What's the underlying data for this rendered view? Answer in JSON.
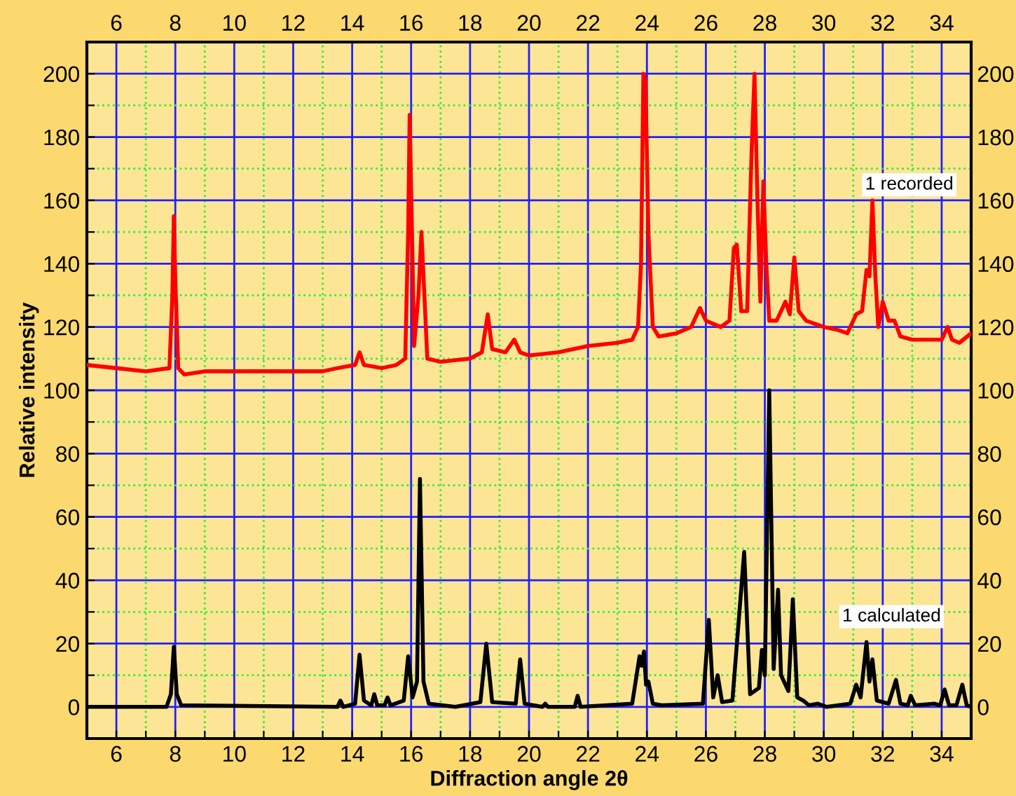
{
  "chart_data": {
    "type": "line",
    "xlabel": "Diffraction angle 2θ",
    "ylabel": "Relative intensity",
    "xlim": [
      5,
      35
    ],
    "xticks": [
      6,
      {
        "value": 7,
        "label": null
      },
      8,
      {
        "value": 9,
        "label": null
      },
      10,
      {
        "value": 11,
        "label": null
      },
      12,
      {
        "value": 13,
        "label": null
      },
      14,
      {
        "value": 15,
        "label": null
      },
      16,
      {
        "value": 17,
        "label": null
      },
      18,
      {
        "value": 19,
        "label": null
      },
      20,
      {
        "value": 21,
        "label": null
      },
      22,
      {
        "value": 23,
        "label": null
      },
      24,
      {
        "value": 25,
        "label": null
      },
      26,
      {
        "value": 27,
        "label": null
      },
      28,
      {
        "value": 29,
        "label": null
      },
      30,
      {
        "value": 31,
        "label": null
      },
      32,
      {
        "value": 33,
        "label": null
      },
      34
    ],
    "x2lim": [
      5,
      35
    ],
    "x2ticks": [
      6,
      8,
      10,
      12,
      14,
      16,
      18,
      20,
      22,
      24,
      26,
      28,
      30,
      32,
      34
    ],
    "ylim": [
      -10,
      210
    ],
    "yticks": [
      0,
      {
        "value": 10,
        "label": null
      },
      20,
      {
        "value": 30,
        "label": null
      },
      40,
      {
        "value": 50,
        "label": null
      },
      60,
      {
        "value": 70,
        "label": null
      },
      80,
      {
        "value": 90,
        "label": null
      },
      100,
      {
        "value": 110,
        "label": null
      },
      120,
      {
        "value": 130,
        "label": null
      },
      140,
      {
        "value": 150,
        "label": null
      },
      160,
      {
        "value": 170,
        "label": null
      },
      180,
      {
        "value": 190,
        "label": null
      },
      200
    ],
    "y2lim": [
      -10,
      210
    ],
    "y2ticks": [
      0,
      20,
      40,
      60,
      80,
      100,
      120,
      140,
      160,
      180,
      200
    ],
    "grid": true,
    "marker": "none",
    "line_style": "solid",
    "series": [
      {
        "name": "1 recorded",
        "color": "#ff0000",
        "x": [
          5,
          6,
          7,
          7.8,
          7.9,
          7.95,
          8.0,
          8.1,
          8.3,
          9,
          10,
          11,
          12,
          13,
          13.5,
          14.1,
          14.25,
          14.4,
          15,
          15.5,
          15.8,
          15.9,
          15.95,
          16.05,
          16.1,
          16.25,
          16.35,
          16.45,
          16.55,
          17,
          18,
          18.4,
          18.6,
          18.75,
          19.2,
          19.5,
          19.7,
          20,
          21,
          22,
          23,
          23.5,
          23.7,
          23.8,
          23.88,
          23.95,
          24.05,
          24.2,
          24.4,
          25,
          25.5,
          25.8,
          26,
          26.5,
          26.8,
          26.95,
          27.05,
          27.2,
          27.4,
          27.55,
          27.65,
          27.75,
          27.85,
          27.95,
          28.05,
          28.15,
          28.4,
          28.7,
          28.85,
          29.0,
          29.15,
          29.4,
          30,
          30.5,
          30.8,
          31.1,
          31.3,
          31.45,
          31.55,
          31.65,
          31.75,
          31.85,
          32.0,
          32.2,
          32.4,
          32.6,
          33,
          33.5,
          34,
          34.2,
          34.35,
          34.6,
          35
        ],
        "values": [
          108,
          107,
          106,
          107,
          130,
          155,
          135,
          107,
          105,
          106,
          106,
          106,
          106,
          106,
          107,
          108,
          112,
          108,
          107,
          108,
          110,
          150,
          187,
          140,
          114,
          130,
          150,
          130,
          110,
          109,
          110,
          112,
          124,
          113,
          112,
          116,
          112,
          111,
          112,
          114,
          115,
          116,
          120,
          140,
          200,
          198,
          150,
          120,
          117,
          118,
          120,
          126,
          122,
          120,
          122,
          145,
          146,
          125,
          125,
          175,
          200,
          160,
          128,
          166,
          140,
          122,
          122,
          128,
          124,
          142,
          125,
          122,
          120,
          119,
          118,
          124,
          125,
          138,
          136,
          160,
          136,
          120,
          128,
          122,
          122,
          117,
          116,
          116,
          116,
          120,
          116,
          115,
          118
        ]
      },
      {
        "name": "1 calculated",
        "color": "#000000",
        "x": [
          5,
          7.7,
          7.85,
          7.95,
          8.05,
          8.2,
          13.5,
          13.6,
          13.7,
          14.1,
          14.25,
          14.4,
          14.65,
          14.75,
          14.85,
          15.1,
          15.2,
          15.3,
          15.75,
          15.9,
          16.05,
          16.2,
          16.3,
          16.42,
          16.6,
          17.5,
          18.35,
          18.55,
          18.75,
          19.55,
          19.7,
          19.85,
          20.45,
          20.55,
          20.65,
          21.55,
          21.65,
          21.75,
          23.5,
          23.75,
          23.82,
          23.9,
          23.97,
          24.05,
          24.2,
          24.5,
          25.9,
          26.1,
          26.25,
          26.4,
          26.55,
          26.9,
          27.3,
          27.5,
          27.8,
          27.9,
          28.0,
          28.15,
          28.3,
          28.45,
          28.55,
          28.65,
          28.8,
          28.95,
          29.1,
          29.3,
          29.5,
          29.8,
          30.1,
          30.9,
          31.1,
          31.25,
          31.45,
          31.55,
          31.65,
          31.8,
          32.2,
          32.45,
          32.6,
          32.85,
          32.95,
          33.1,
          33.75,
          33.95,
          34.1,
          34.25,
          34.5,
          34.7,
          34.85,
          35
        ],
        "values": [
          0,
          0,
          4,
          19,
          4,
          0.5,
          0,
          2,
          0,
          1,
          16.5,
          2,
          0.5,
          4,
          0.5,
          0.5,
          3,
          0.5,
          2,
          16,
          3,
          8,
          72,
          8,
          1,
          0,
          1.5,
          20,
          1.5,
          1,
          15,
          1,
          0,
          1,
          0,
          0,
          3.5,
          0,
          1,
          16,
          13,
          17.5,
          7,
          8,
          1,
          0.5,
          1,
          27.5,
          3,
          10,
          1.5,
          2,
          49,
          4,
          6,
          18,
          10,
          100,
          12,
          37,
          10,
          8,
          5,
          34,
          3,
          2,
          0.5,
          1,
          0,
          1,
          7,
          3,
          20.5,
          8,
          15,
          2,
          1,
          8.5,
          1,
          0.5,
          3.5,
          0.5,
          1,
          0.5,
          5.5,
          0.5,
          0.5,
          7,
          0.5,
          0
        ]
      }
    ]
  }
}
